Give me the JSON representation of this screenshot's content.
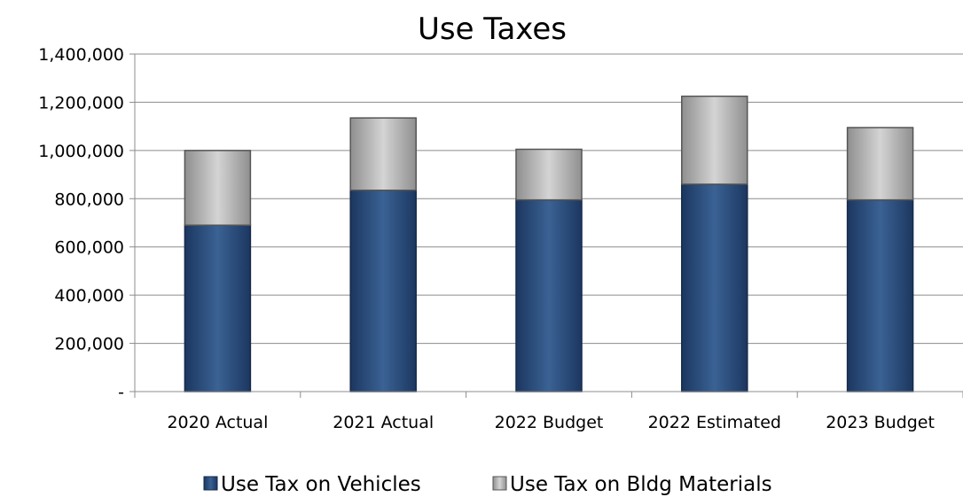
{
  "chart_data": {
    "type": "bar",
    "stacked": true,
    "title": "Use Taxes",
    "xlabel": "",
    "ylabel": "",
    "categories": [
      "2020 Actual",
      "2021 Actual",
      "2022 Budget",
      "2022 Estimated",
      "2023 Budget"
    ],
    "series": [
      {
        "name": "Use Tax on Vehicles",
        "values": [
          690000,
          835000,
          795000,
          860000,
          795000
        ],
        "color": "#2a4d7c"
      },
      {
        "name": "Use Tax on Bldg Materials",
        "values": [
          310000,
          300000,
          210000,
          365000,
          300000
        ],
        "color": "#b4b4b4"
      }
    ],
    "ylim": [
      0,
      1400000
    ],
    "yticks": [
      0,
      200000,
      400000,
      600000,
      800000,
      1000000,
      1200000,
      1400000
    ],
    "ytick_labels": [
      "-",
      "200,000",
      "400,000",
      "600,000",
      "800,000",
      "1,000,000",
      "1,200,000",
      "1,400,000"
    ],
    "grid": true,
    "legend_position": "bottom"
  }
}
